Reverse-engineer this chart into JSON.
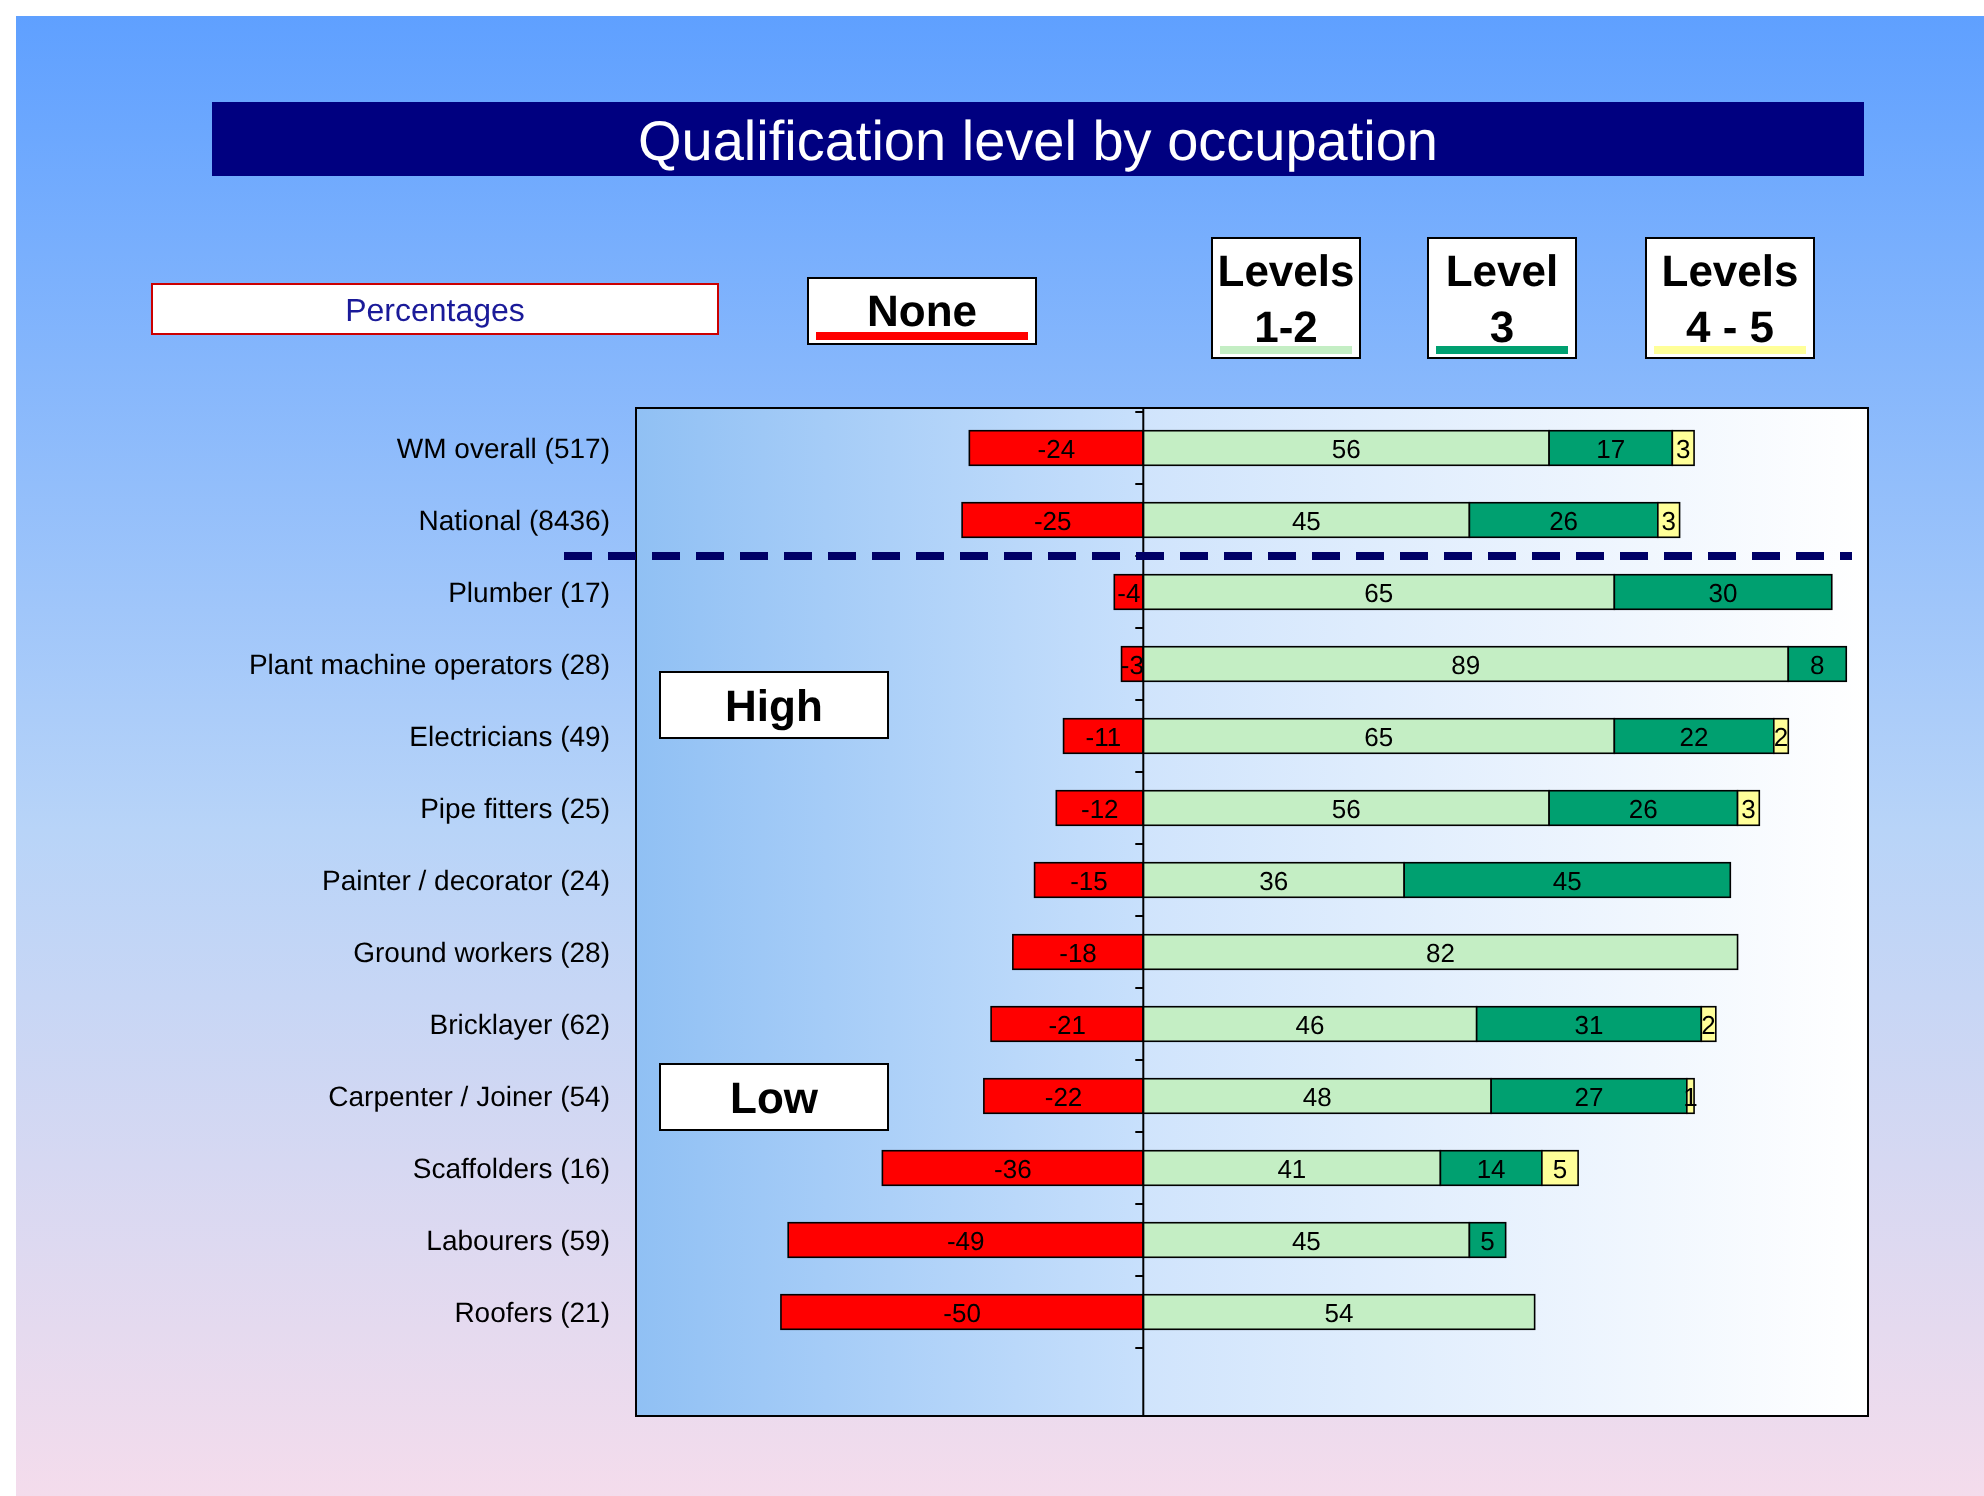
{
  "chart_data": {
    "type": "bar",
    "title": "Qualification level by occupation",
    "orientation": "horizontal",
    "stacked": true,
    "data_labels": true,
    "legend": "top",
    "tick_labels": "y",
    "categories": [
      "WM overall (517)",
      "National (8436)",
      "Plumber (17)",
      "Plant machine operators (28)",
      "Electricians (49)",
      "Pipe fitters (25)",
      "Painter / decorator (24)",
      "Ground workers (28)",
      "Bricklayer (62)",
      "Carpenter / Joiner (54)",
      "Scaffolders (16)",
      "Labourers (59)",
      "Roofers (21)"
    ],
    "xlim": [
      -70,
      100
    ],
    "series": [
      {
        "name": "None",
        "color": "#ff0000",
        "values": [
          -24,
          -25,
          -4,
          -3,
          -11,
          -12,
          -15,
          -18,
          -21,
          -22,
          -36,
          -49,
          -50
        ]
      },
      {
        "name": "Levels 1-2",
        "color": "#c4eec4",
        "values": [
          56,
          45,
          65,
          89,
          65,
          56,
          36,
          82,
          46,
          48,
          41,
          45,
          54
        ]
      },
      {
        "name": "Level 3",
        "color": "#00a070",
        "values": [
          17,
          26,
          30,
          8,
          22,
          26,
          45,
          null,
          31,
          27,
          14,
          5,
          null
        ]
      },
      {
        "name": "Levels 4 - 5",
        "color": "#ffff99",
        "values": [
          3,
          3,
          null,
          null,
          2,
          3,
          null,
          null,
          2,
          1,
          5,
          null,
          null
        ]
      }
    ],
    "ref_lines": [
      {
        "axis": "y",
        "value": "National (8436)",
        "color": "#000066",
        "line_style": "dashed"
      }
    ],
    "annotations": [
      "Percentages",
      "High",
      "Low"
    ]
  }
}
